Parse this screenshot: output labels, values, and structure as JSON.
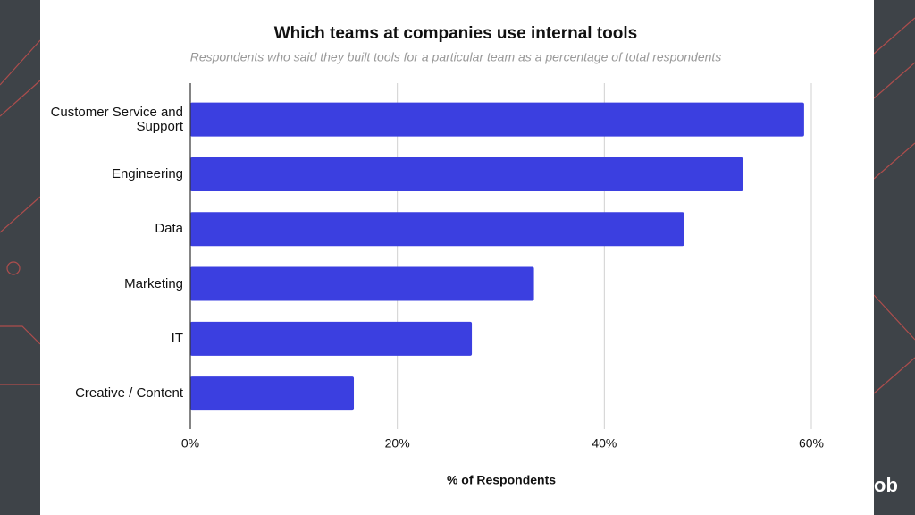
{
  "chart_data": {
    "type": "bar",
    "orientation": "horizontal",
    "title": "Which teams at companies use internal tools",
    "subtitle": "Respondents who said they built tools for a particular team as a percentage of total respondents",
    "x_label": "% of Respondents",
    "categories": [
      "Customer Service and Support",
      "Engineering",
      "Data",
      "Marketing",
      "IT",
      "Creative / Content"
    ],
    "values": [
      59.3,
      53.4,
      47.7,
      33.2,
      27.2,
      15.8
    ],
    "color": "#3b3fe0",
    "xlim": [
      0,
      60
    ],
    "xticks": [
      {
        "value": 0,
        "label": "0%"
      },
      {
        "value": 20,
        "label": "20%"
      },
      {
        "value": 40,
        "label": "40%"
      },
      {
        "value": 60,
        "label": "60%"
      }
    ],
    "grid": true
  },
  "logo_text": "ob"
}
